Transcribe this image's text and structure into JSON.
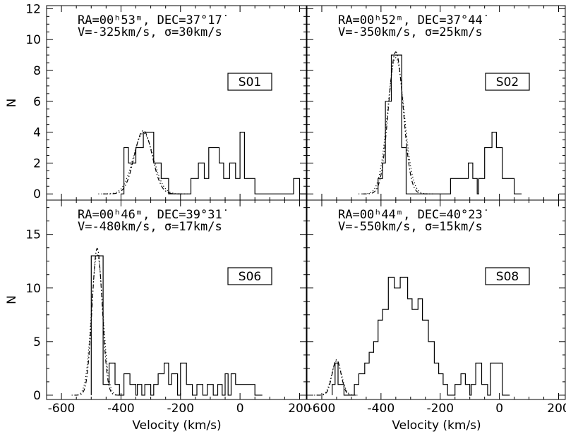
{
  "chart_data": [
    {
      "type": "histogram",
      "id": "S01",
      "label": "S01",
      "annotation": {
        "line1": "RA=00ʰ53ᵐ, DEC=37°17˙",
        "line2": "V=-325km/s,  σ=30km/s"
      },
      "bin_width": 25,
      "ylim": [
        -0.4,
        12.2
      ],
      "yticks": [
        0,
        2,
        4,
        6,
        8,
        10,
        12
      ],
      "ylabel": "N",
      "bins": [
        [
          -400,
          0
        ],
        [
          -390,
          3
        ],
        [
          -375,
          2
        ],
        [
          -350,
          3
        ],
        [
          -325,
          4
        ],
        [
          -310,
          4
        ],
        [
          -290,
          2
        ],
        [
          -265,
          1
        ],
        [
          -240,
          0
        ],
        [
          -225,
          0
        ],
        [
          -165,
          1
        ],
        [
          -140,
          2
        ],
        [
          -120,
          1
        ],
        [
          -105,
          3
        ],
        [
          -80,
          3
        ],
        [
          -70,
          2
        ],
        [
          -55,
          1
        ],
        [
          -35,
          2
        ],
        [
          -15,
          1
        ],
        [
          0,
          4
        ],
        [
          15,
          1
        ],
        [
          40,
          1
        ],
        [
          50,
          0
        ],
        [
          180,
          1
        ],
        [
          200,
          0
        ]
      ],
      "fit": {
        "mean": -325,
        "sigma": 30,
        "amp": 4.1
      }
    },
    {
      "type": "histogram",
      "id": "S02",
      "label": "S02",
      "annotation": {
        "line1": "RA=00ʰ52ᵐ, DEC=37°44˙",
        "line2": "V=-350km/s,  σ=25km/s"
      },
      "bin_width": 25,
      "ylim": [
        -0.4,
        12.2
      ],
      "yticks": [
        0,
        2,
        4,
        6,
        8,
        10,
        12
      ],
      "ylabel": "N",
      "bins": [
        [
          -410,
          1
        ],
        [
          -395,
          2
        ],
        [
          -385,
          6
        ],
        [
          -365,
          9
        ],
        [
          -345,
          9
        ],
        [
          -330,
          3
        ],
        [
          -315,
          0
        ],
        [
          -300,
          0
        ],
        [
          -165,
          1
        ],
        [
          -105,
          2
        ],
        [
          -90,
          1
        ],
        [
          -75,
          0
        ],
        [
          -70,
          1
        ],
        [
          -50,
          3
        ],
        [
          -25,
          4
        ],
        [
          -10,
          3
        ],
        [
          10,
          1
        ],
        [
          35,
          1
        ],
        [
          50,
          0
        ]
      ],
      "fit": {
        "mean": -350,
        "sigma": 25,
        "amp": 9.2
      }
    },
    {
      "type": "histogram",
      "id": "S06",
      "label": "S06",
      "annotation": {
        "line1": "RA=00ʰ46ᵐ, DEC=39°31˙",
        "line2": "V=-480km/s,  σ=17km/s"
      },
      "bin_width": 25,
      "ylim": [
        -0.4,
        18.2
      ],
      "yticks": [
        0,
        5,
        10,
        15
      ],
      "ylabel": "N",
      "bins": [
        [
          -500,
          13
        ],
        [
          -460,
          1
        ],
        [
          -440,
          3
        ],
        [
          -420,
          1
        ],
        [
          -405,
          0
        ],
        [
          -390,
          2
        ],
        [
          -370,
          1
        ],
        [
          -350,
          0
        ],
        [
          -345,
          1
        ],
        [
          -330,
          0
        ],
        [
          -320,
          1
        ],
        [
          -300,
          0
        ],
        [
          -290,
          1
        ],
        [
          -275,
          2
        ],
        [
          -255,
          3
        ],
        [
          -240,
          1
        ],
        [
          -230,
          2
        ],
        [
          -210,
          0
        ],
        [
          -200,
          3
        ],
        [
          -180,
          1
        ],
        [
          -160,
          0
        ],
        [
          -145,
          1
        ],
        [
          -125,
          0
        ],
        [
          -110,
          1
        ],
        [
          -90,
          0
        ],
        [
          -75,
          1
        ],
        [
          -60,
          0
        ],
        [
          -50,
          2
        ],
        [
          -40,
          0
        ],
        [
          -30,
          2
        ],
        [
          -15,
          1
        ],
        [
          0,
          1
        ],
        [
          20,
          1
        ],
        [
          50,
          0
        ]
      ],
      "fit": {
        "mean": -480,
        "sigma": 17,
        "amp": 13.7
      }
    },
    {
      "type": "histogram",
      "id": "S08",
      "label": "S08",
      "annotation": {
        "line1": "RA=00ʰ44ᵐ, DEC=40°23˙",
        "line2": "V=-550km/s,  σ=15km/s"
      },
      "bin_width": 25,
      "ylim": [
        -0.4,
        18.2
      ],
      "yticks": [
        0,
        5,
        10,
        15
      ],
      "ylabel": "N",
      "bins": [
        [
          -565,
          1
        ],
        [
          -555,
          3
        ],
        [
          -545,
          1
        ],
        [
          -525,
          0
        ],
        [
          -490,
          1
        ],
        [
          -475,
          2
        ],
        [
          -455,
          3
        ],
        [
          -440,
          4
        ],
        [
          -425,
          5
        ],
        [
          -410,
          7
        ],
        [
          -395,
          8
        ],
        [
          -375,
          11
        ],
        [
          -355,
          10
        ],
        [
          -335,
          11
        ],
        [
          -310,
          9
        ],
        [
          -295,
          8
        ],
        [
          -275,
          9
        ],
        [
          -260,
          7
        ],
        [
          -240,
          5
        ],
        [
          -220,
          3
        ],
        [
          -205,
          2
        ],
        [
          -190,
          1
        ],
        [
          -175,
          0
        ],
        [
          -150,
          1
        ],
        [
          -130,
          2
        ],
        [
          -115,
          1
        ],
        [
          -100,
          0
        ],
        [
          -95,
          1
        ],
        [
          -80,
          3
        ],
        [
          -60,
          1
        ],
        [
          -40,
          0
        ],
        [
          -30,
          3
        ],
        [
          -10,
          3
        ],
        [
          10,
          0
        ]
      ],
      "fit": {
        "mean": -550,
        "sigma": 15,
        "amp": 3.3
      }
    }
  ],
  "axes": {
    "xlim": [
      -650,
      225
    ],
    "xticks": [
      -600,
      -400,
      -200,
      0,
      200
    ],
    "xlabel": "Velocity (km/s)",
    "ylabel": "N"
  }
}
